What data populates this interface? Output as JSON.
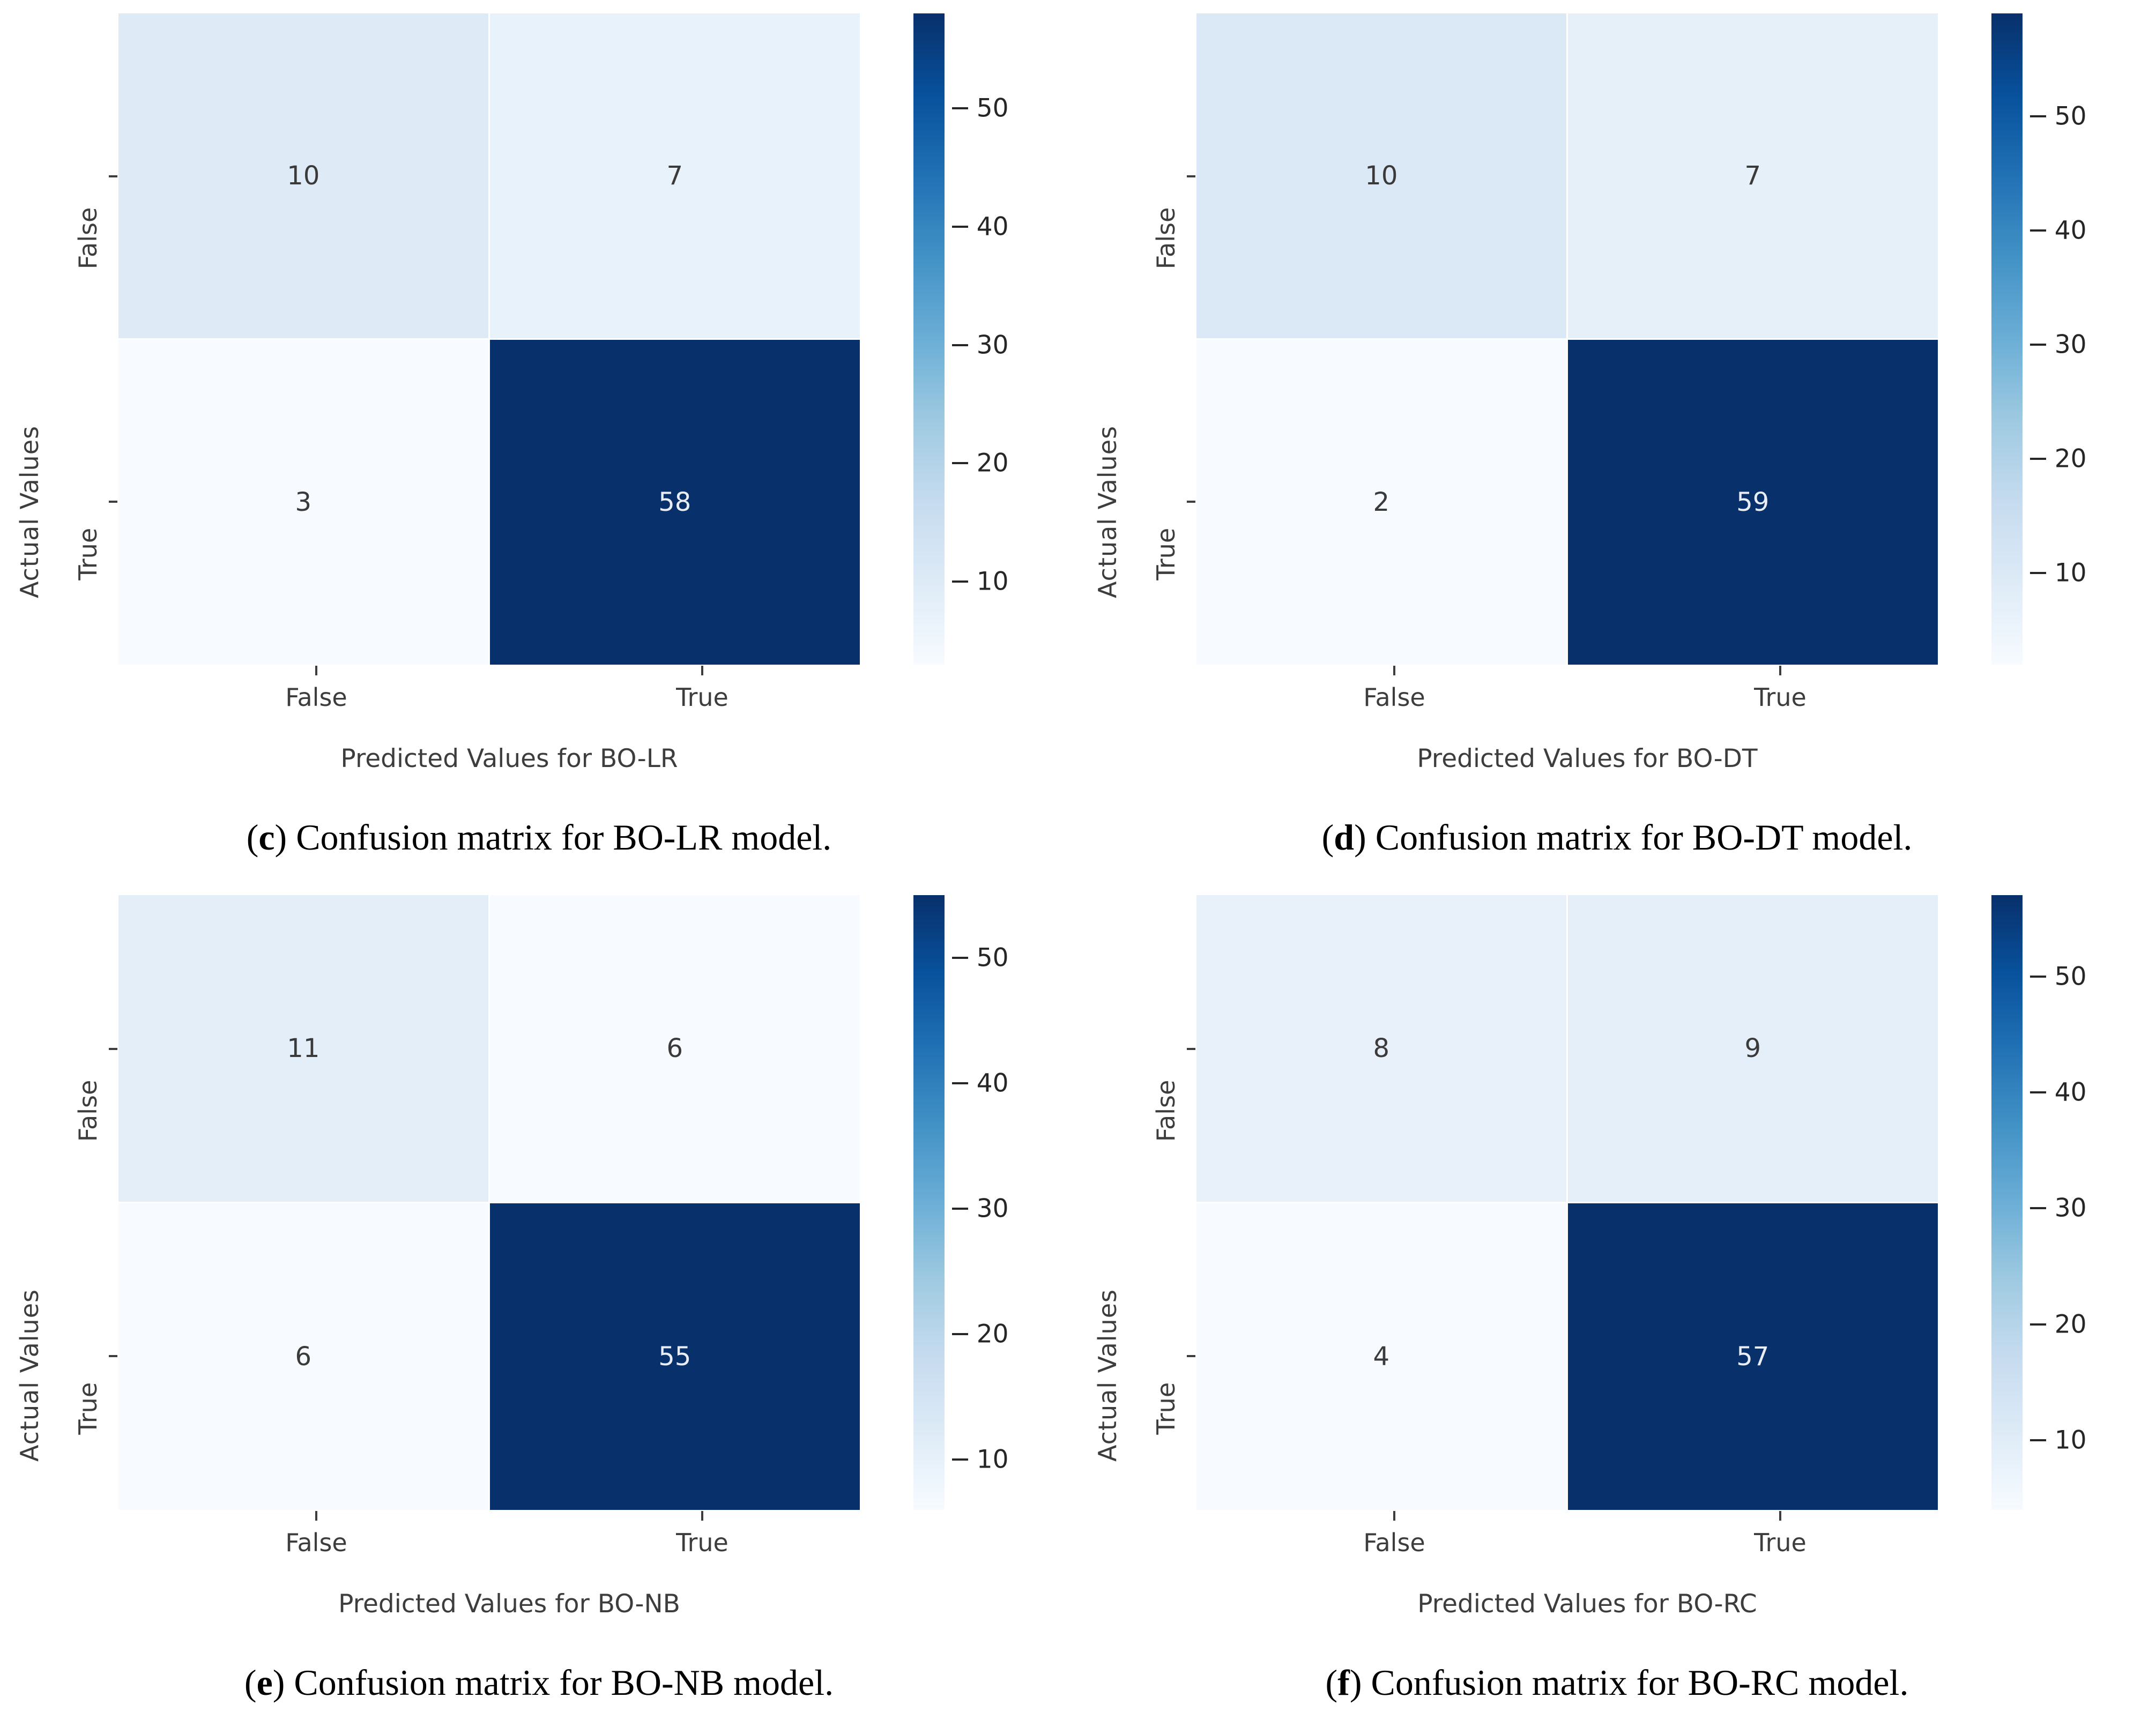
{
  "figure_type": "confusion-matrix-panel",
  "colormap": "Blues",
  "colormap_stops": [
    "#f7fbff",
    "#deebf7",
    "#c6dbef",
    "#9ecae1",
    "#6baed6",
    "#4292c6",
    "#2171b5",
    "#08519c",
    "#08306b"
  ],
  "heatmap_text_colors": {
    "on_light": "#3a3a3a",
    "on_dark": "#e8edf6"
  },
  "axis_text_color": "#3d3d3d",
  "caption_punctuation": {
    "open": "(",
    "close": ")"
  },
  "chart_data": [
    {
      "type": "heatmap",
      "caption_letter": "c",
      "caption_body": " Confusion matrix for BO-LR model.",
      "xlabel": "Predicted Values for BO-LR",
      "ylabel": "Actual Values",
      "x_tick_labels": [
        "False",
        "True"
      ],
      "y_tick_labels": [
        "False",
        "True"
      ],
      "matrix": [
        [
          10,
          7
        ],
        [
          3,
          58
        ]
      ],
      "matrix_flat": [
        10,
        7,
        3,
        58
      ],
      "colorbar_ticks": [
        10,
        20,
        30,
        40,
        50
      ],
      "value_range": [
        3,
        58
      ]
    },
    {
      "type": "heatmap",
      "caption_letter": "d",
      "caption_body": " Confusion matrix for BO-DT model.",
      "xlabel": "Predicted Values for BO-DT",
      "ylabel": "Actual Values",
      "x_tick_labels": [
        "False",
        "True"
      ],
      "y_tick_labels": [
        "False",
        "True"
      ],
      "matrix": [
        [
          10,
          7
        ],
        [
          2,
          59
        ]
      ],
      "matrix_flat": [
        10,
        7,
        2,
        59
      ],
      "colorbar_ticks": [
        10,
        20,
        30,
        40,
        50
      ],
      "value_range": [
        2,
        59
      ]
    },
    {
      "type": "heatmap",
      "caption_letter": "e",
      "caption_body": " Confusion matrix for BO-NB model.",
      "xlabel": "Predicted Values for BO-NB",
      "ylabel": "Actual Values",
      "x_tick_labels": [
        "False",
        "True"
      ],
      "y_tick_labels": [
        "False",
        "True"
      ],
      "matrix": [
        [
          11,
          6
        ],
        [
          6,
          55
        ]
      ],
      "matrix_flat": [
        11,
        6,
        6,
        55
      ],
      "colorbar_ticks": [
        10,
        20,
        30,
        40,
        50
      ],
      "value_range": [
        6,
        55
      ]
    },
    {
      "type": "heatmap",
      "caption_letter": "f",
      "caption_body": " Confusion matrix for BO-RC model.",
      "xlabel": "Predicted Values for BO-RC",
      "ylabel": "Actual Values",
      "x_tick_labels": [
        "False",
        "True"
      ],
      "y_tick_labels": [
        "False",
        "True"
      ],
      "matrix": [
        [
          8,
          9
        ],
        [
          4,
          57
        ]
      ],
      "matrix_flat": [
        8,
        9,
        4,
        57
      ],
      "colorbar_ticks": [
        10,
        20,
        30,
        40,
        50
      ],
      "value_range": [
        4,
        57
      ]
    }
  ]
}
